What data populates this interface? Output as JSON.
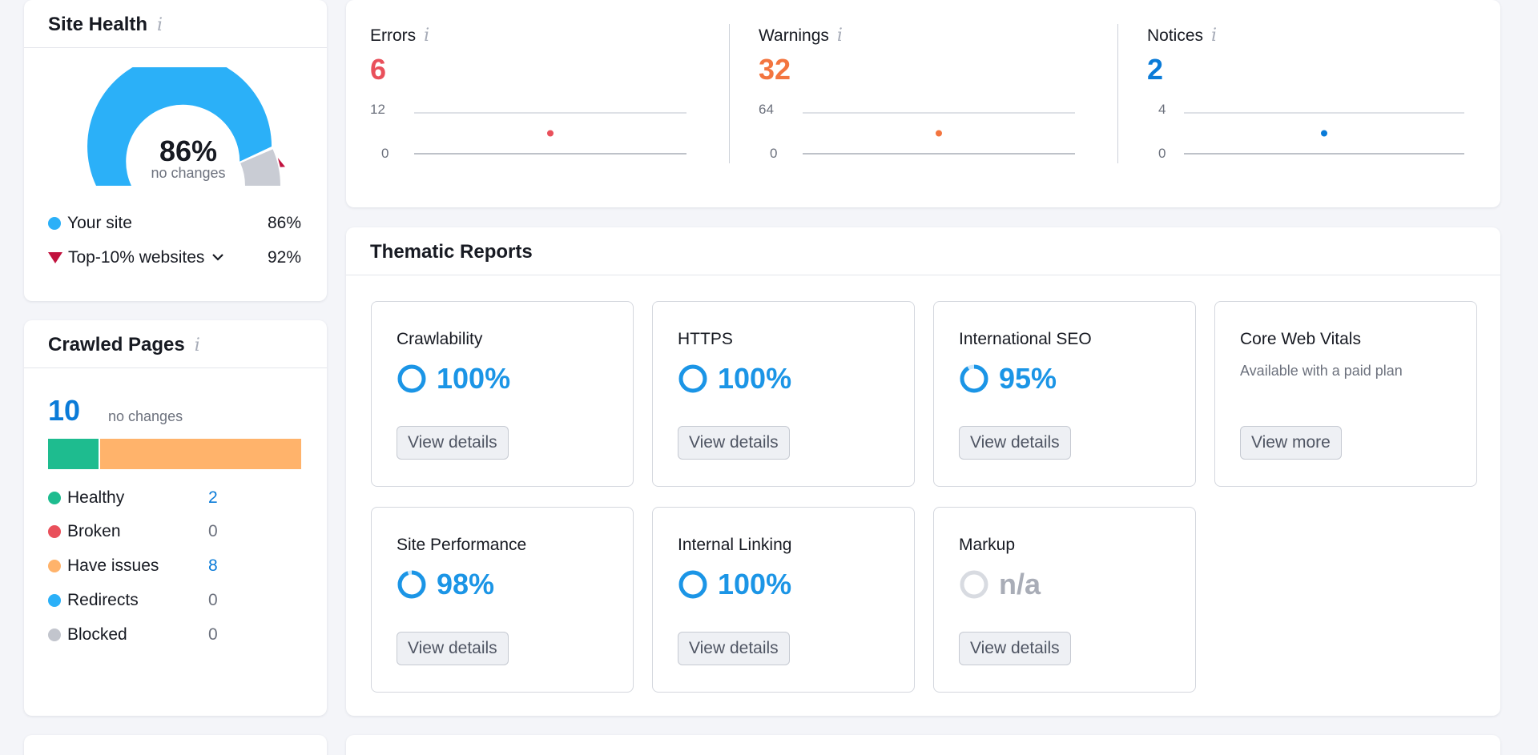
{
  "site_health": {
    "title": "Site Health",
    "info_icon": "info-icon",
    "score": "86%",
    "change_text": "no changes",
    "gauge_fraction": 0.86,
    "top10_fraction": 0.92,
    "legend": [
      {
        "label": "Your site",
        "value": "86%",
        "color": "#2bb0f8"
      },
      {
        "label": "Top-10% websites",
        "value": "92%",
        "color": "#c1123e"
      }
    ]
  },
  "crawled_pages": {
    "title": "Crawled Pages",
    "count": "10",
    "change_text": "no changes",
    "bar": [
      {
        "name": "healthy",
        "count": 2,
        "color": "#1ebc8f"
      },
      {
        "name": "have-issues",
        "count": 8,
        "color": "#ffb36b"
      }
    ],
    "rows": [
      {
        "label": "Healthy",
        "value": "2",
        "color": "#1ebc8f",
        "link": true
      },
      {
        "label": "Broken",
        "value": "0",
        "color": "#e9505b",
        "link": false
      },
      {
        "label": "Have issues",
        "value": "8",
        "color": "#ffb36b",
        "link": true
      },
      {
        "label": "Redirects",
        "value": "0",
        "color": "#2bb0f8",
        "link": false
      },
      {
        "label": "Blocked",
        "value": "0",
        "color": "#c2c5cd",
        "link": false
      }
    ]
  },
  "issues": [
    {
      "label": "Errors",
      "value": "6",
      "color": "#e9505b",
      "y_max": "12",
      "y_min": "0",
      "point": 6,
      "max": 12
    },
    {
      "label": "Warnings",
      "value": "32",
      "color": "#f3753f",
      "y_max": "64",
      "y_min": "0",
      "point": 32,
      "max": 64
    },
    {
      "label": "Notices",
      "value": "2",
      "color": "#0a7bd8",
      "y_max": "4",
      "y_min": "0",
      "point": 2,
      "max": 4
    }
  ],
  "thematic": {
    "title": "Thematic Reports",
    "tiles": [
      {
        "title": "Crawlability",
        "score": "100%",
        "fraction": 1.0,
        "button": "View details"
      },
      {
        "title": "HTTPS",
        "score": "100%",
        "fraction": 1.0,
        "button": "View details"
      },
      {
        "title": "International SEO",
        "score": "95%",
        "fraction": 0.95,
        "button": "View details"
      },
      {
        "title": "Core Web Vitals",
        "note": "Available with a paid plan",
        "button": "View more"
      },
      {
        "title": "Site Performance",
        "score": "98%",
        "fraction": 0.98,
        "button": "View details"
      },
      {
        "title": "Internal Linking",
        "score": "100%",
        "fraction": 1.0,
        "button": "View details"
      },
      {
        "title": "Markup",
        "score": "n/a",
        "fraction": null,
        "button": "View details"
      }
    ]
  },
  "colors": {
    "accent_blue": "#1b95e6",
    "link_blue": "#0a7bd8",
    "gauge_grey": "#c9ccd4"
  }
}
